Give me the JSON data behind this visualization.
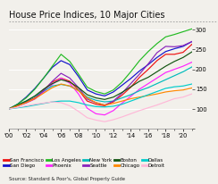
{
  "title": "House Price Indices, 10 Major Cities",
  "source": "Source: Standard & Poor's, Global Property Guide",
  "years": [
    2000,
    2001,
    2002,
    2003,
    2004,
    2005,
    2006,
    2007,
    2008,
    2009,
    2010,
    2011,
    2012,
    2013,
    2014,
    2015,
    2016,
    2017,
    2018,
    2019,
    2020,
    2021
  ],
  "series": [
    {
      "name": "San Francisco",
      "color": "#EE1111",
      "values": [
        100,
        108,
        118,
        128,
        148,
        168,
        178,
        170,
        148,
        120,
        112,
        108,
        118,
        135,
        155,
        180,
        200,
        222,
        238,
        238,
        243,
        263
      ]
    },
    {
      "name": "San Diego",
      "color": "#1111CC",
      "values": [
        100,
        112,
        130,
        152,
        178,
        205,
        222,
        212,
        182,
        148,
        138,
        133,
        143,
        160,
        177,
        196,
        212,
        230,
        245,
        252,
        258,
        270
      ]
    },
    {
      "name": "Los Angeles",
      "color": "#22BB22",
      "values": [
        100,
        112,
        128,
        150,
        178,
        208,
        238,
        220,
        188,
        155,
        144,
        138,
        148,
        168,
        194,
        222,
        245,
        265,
        282,
        288,
        295,
        302
      ]
    },
    {
      "name": "Phoenix",
      "color": "#FF22FF",
      "values": [
        100,
        108,
        115,
        125,
        142,
        162,
        178,
        165,
        138,
        102,
        88,
        85,
        96,
        115,
        132,
        150,
        164,
        178,
        192,
        200,
        208,
        218
      ]
    },
    {
      "name": "New York",
      "color": "#00BBBB",
      "values": [
        100,
        110,
        120,
        132,
        145,
        158,
        162,
        158,
        147,
        130,
        122,
        118,
        120,
        128,
        136,
        146,
        154,
        164,
        174,
        184,
        194,
        206
      ]
    },
    {
      "name": "Seattle",
      "color": "#8822BB",
      "values": [
        100,
        108,
        116,
        126,
        146,
        170,
        190,
        178,
        154,
        125,
        116,
        110,
        120,
        140,
        164,
        188,
        214,
        242,
        258,
        257,
        260,
        270
      ]
    },
    {
      "name": "Boston",
      "color": "#115511",
      "values": [
        100,
        110,
        120,
        133,
        150,
        164,
        174,
        168,
        154,
        136,
        128,
        124,
        130,
        142,
        156,
        170,
        180,
        194,
        208,
        220,
        230,
        244
      ]
    },
    {
      "name": "Chicago",
      "color": "#FF8800",
      "values": [
        100,
        108,
        116,
        126,
        140,
        154,
        163,
        158,
        146,
        128,
        116,
        110,
        114,
        120,
        126,
        130,
        134,
        138,
        143,
        146,
        148,
        153
      ]
    },
    {
      "name": "Dallas",
      "color": "#00CCCC",
      "values": [
        100,
        103,
        106,
        110,
        114,
        118,
        120,
        120,
        116,
        110,
        106,
        105,
        107,
        112,
        120,
        128,
        136,
        144,
        152,
        156,
        158,
        163
      ]
    },
    {
      "name": "Detroit",
      "color": "#FFB8D8",
      "values": [
        100,
        104,
        108,
        112,
        115,
        118,
        116,
        108,
        94,
        78,
        72,
        68,
        73,
        80,
        88,
        96,
        103,
        110,
        118,
        126,
        130,
        138
      ]
    }
  ],
  "xlim": [
    2000,
    2021
  ],
  "ylim": [
    50,
    310
  ],
  "yticks": [
    50,
    100,
    150,
    200,
    250,
    300
  ],
  "xtick_positions": [
    2000,
    2002,
    2004,
    2006,
    2008,
    2010,
    2012,
    2014,
    2016,
    2018,
    2020
  ],
  "xtick_labels": [
    "'00",
    "'02",
    "'04",
    "'06",
    "'08",
    "'10",
    "'12",
    "'14",
    "'16",
    "'18",
    "'20"
  ],
  "bg_color": "#F2F0EB",
  "grid_color": "#FFFFFF",
  "title_fontsize": 7.0,
  "tick_fontsize": 4.8,
  "legend_fontsize": 4.0,
  "source_fontsize": 3.8
}
